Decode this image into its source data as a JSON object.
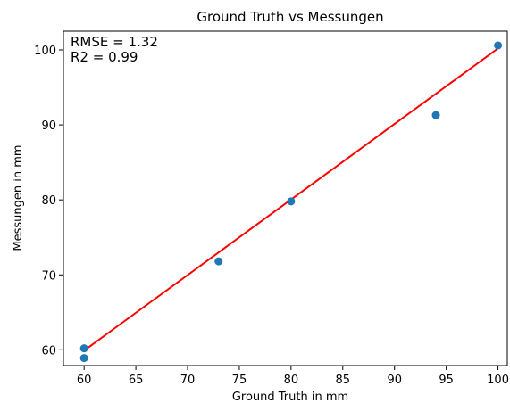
{
  "chart_data": {
    "type": "scatter",
    "title": "Ground Truth vs Messungen",
    "xlabel": "Ground Truth in mm",
    "ylabel": "Messungen in mm",
    "xlim": [
      58,
      100.9
    ],
    "ylim": [
      57.9,
      102.5
    ],
    "xticks": [
      60,
      65,
      70,
      75,
      80,
      85,
      90,
      95,
      100
    ],
    "yticks": [
      60,
      70,
      80,
      90,
      100
    ],
    "grid": false,
    "series": [
      {
        "kind": "scatter",
        "color": "#1f77b4",
        "x": [
          60,
          60,
          73,
          80,
          94,
          100
        ],
        "y": [
          60.2,
          58.9,
          71.8,
          79.8,
          91.3,
          100.6
        ]
      },
      {
        "kind": "line",
        "color": "#ff0000",
        "x": [
          60,
          100
        ],
        "y": [
          59.9,
          100.2
        ]
      }
    ],
    "annotations": [
      "RMSE = 1.32",
      "R2 = 0.99"
    ]
  }
}
